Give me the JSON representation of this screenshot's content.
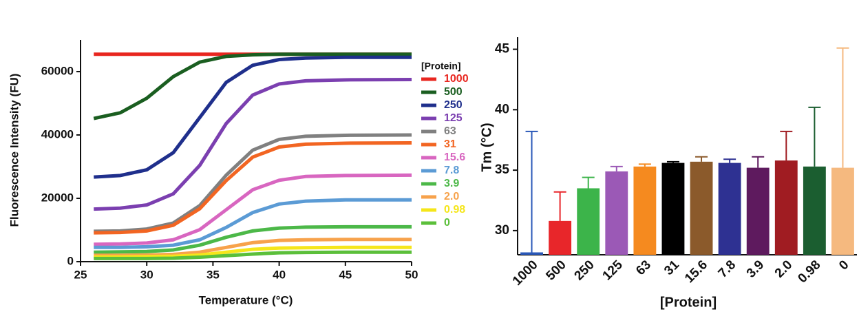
{
  "chart_data": [
    {
      "type": "line",
      "xlabel": "Temperature (°C)",
      "ylabel": "Fluorescence Intensity (FU)",
      "legend_title": "[Protein]",
      "x": [
        26,
        28,
        30,
        32,
        34,
        36,
        38,
        40,
        42,
        45,
        50
      ],
      "xlim": [
        25,
        50
      ],
      "xticks": [
        25,
        30,
        35,
        40,
        45,
        50
      ],
      "ylim": [
        0,
        70000
      ],
      "yticks": [
        0,
        20000,
        40000,
        60000
      ],
      "series": [
        {
          "name": "1000",
          "color": "#e8261f",
          "values": [
            65500,
            65500,
            65500,
            65500,
            65500,
            65500,
            65500,
            65500,
            65500,
            65500,
            65500
          ]
        },
        {
          "name": "500",
          "color": "#1a5e20",
          "values": [
            45200,
            47000,
            51600,
            58400,
            63000,
            64800,
            65300,
            65500,
            65500,
            65500,
            65500
          ]
        },
        {
          "name": "250",
          "color": "#1f2f8c",
          "values": [
            26700,
            27200,
            29000,
            34400,
            45500,
            56600,
            62000,
            63800,
            64300,
            64500,
            64500
          ]
        },
        {
          "name": "125",
          "color": "#7b3fb0",
          "values": [
            16600,
            16900,
            17900,
            21400,
            30400,
            43600,
            52600,
            56100,
            57100,
            57400,
            57500
          ]
        },
        {
          "name": "63",
          "color": "#808080",
          "values": [
            9600,
            9700,
            10300,
            12200,
            17700,
            27300,
            35200,
            38600,
            39600,
            39900,
            40000
          ]
        },
        {
          "name": "31",
          "color": "#f26522",
          "values": [
            9100,
            9200,
            9700,
            11500,
            16700,
            25600,
            33000,
            36200,
            37100,
            37400,
            37500
          ]
        },
        {
          "name": "15.6",
          "color": "#d866c0",
          "values": [
            5500,
            5600,
            5900,
            6900,
            10100,
            16400,
            22700,
            25700,
            26900,
            27200,
            27300
          ]
        },
        {
          "name": "7.8",
          "color": "#5b9bd5",
          "values": [
            4500,
            4500,
            4700,
            5200,
            6900,
            10800,
            15500,
            18200,
            19100,
            19500,
            19500
          ]
        },
        {
          "name": "3.9",
          "color": "#4cb848",
          "values": [
            3000,
            3100,
            3200,
            3700,
            5200,
            7700,
            9700,
            10600,
            10900,
            11000,
            11000
          ]
        },
        {
          "name": "2.0",
          "color": "#f7a24b",
          "values": [
            2000,
            2000,
            2100,
            2300,
            3000,
            4500,
            6000,
            6700,
            6900,
            7000,
            7000
          ]
        },
        {
          "name": "0.98",
          "color": "#f5e61a",
          "values": [
            1500,
            1500,
            1600,
            1700,
            2100,
            3000,
            3900,
            4300,
            4400,
            4500,
            4500
          ]
        },
        {
          "name": "0",
          "color": "#5bbf3a",
          "values": [
            1000,
            1000,
            1000,
            1100,
            1400,
            1900,
            2400,
            2800,
            2900,
            3000,
            3000
          ]
        }
      ]
    },
    {
      "type": "bar",
      "xlabel": "[Protein]",
      "ylabel": "Tm (°C)",
      "categories": [
        "1000",
        "500",
        "250",
        "125",
        "63",
        "31",
        "15.6",
        "7.8",
        "3.9",
        "2.0",
        "0.98",
        "0"
      ],
      "values": [
        28.2,
        30.8,
        33.5,
        34.9,
        35.3,
        35.6,
        35.7,
        35.6,
        35.2,
        35.8,
        35.3,
        35.2
      ],
      "errors": [
        10,
        2.4,
        0.9,
        0.4,
        0.2,
        0.1,
        0.4,
        0.3,
        0.9,
        2.4,
        4.9,
        9.9
      ],
      "colors": [
        "#2a58b8",
        "#e8262a",
        "#3cb44a",
        "#9b59b6",
        "#f58a1f",
        "#000000",
        "#8b5a2b",
        "#2e3192",
        "#5e1a5e",
        "#a01c22",
        "#1b5e30",
        "#f5b97f"
      ],
      "ylim": [
        28,
        46
      ],
      "yticks": [
        30,
        35,
        40,
        45
      ]
    }
  ]
}
